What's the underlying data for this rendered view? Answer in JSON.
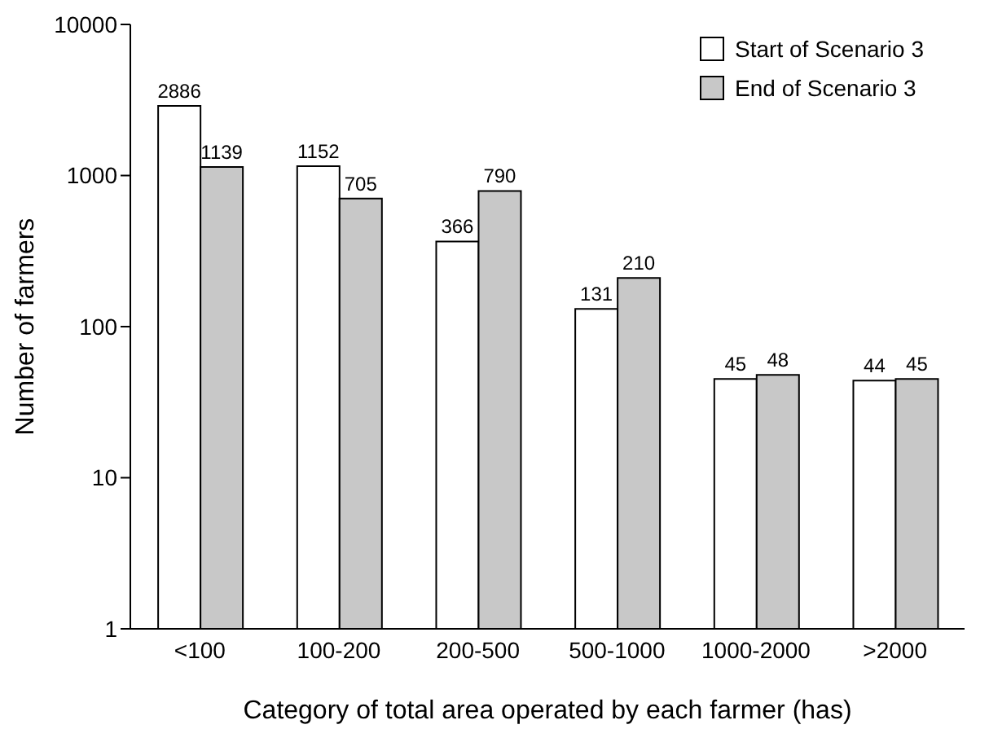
{
  "chart_data": {
    "type": "bar",
    "xlabel": "Category of total area operated by each farmer (has)",
    "ylabel": "Number of farmers",
    "categories": [
      "<100",
      "100-200",
      "200-500",
      "500-1000",
      "1000-2000",
      ">2000"
    ],
    "series": [
      {
        "name": "Start of Scenario 3",
        "color": "#ffffff",
        "values": [
          2886,
          1152,
          366,
          131,
          45,
          44
        ]
      },
      {
        "name": "End of Scenario 3",
        "color": "#c8c8c8",
        "values": [
          1139,
          705,
          790,
          210,
          48,
          45
        ]
      }
    ],
    "log": true,
    "ylim": [
      1,
      10000
    ],
    "yticks": [
      1,
      10,
      100,
      1000,
      10000
    ],
    "legend": "top right",
    "data_labels": true
  }
}
